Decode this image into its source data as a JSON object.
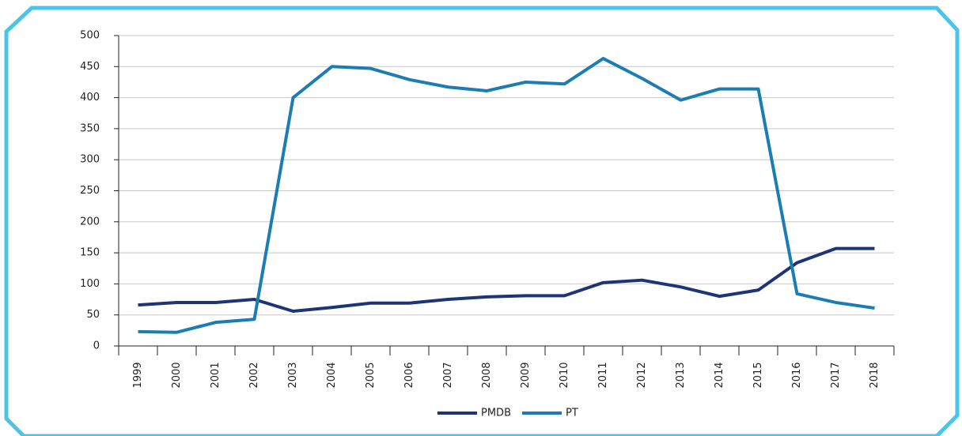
{
  "chart_data": {
    "type": "line",
    "categories": [
      "1999",
      "2000",
      "2001",
      "2002",
      "2003",
      "2004",
      "2005",
      "2006",
      "2007",
      "2008",
      "2009",
      "2010",
      "2011",
      "2012",
      "2013",
      "2014",
      "2015",
      "2016",
      "2017",
      "2018"
    ],
    "series": [
      {
        "name": "PMDB",
        "color": "#1d3577",
        "values": [
          66,
          70,
          70,
          75,
          56,
          62,
          69,
          69,
          75,
          79,
          81,
          81,
          102,
          106,
          95,
          80,
          90,
          134,
          157,
          157
        ]
      },
      {
        "name": "PT",
        "color": "#1b7db4",
        "values": [
          23,
          22,
          38,
          43,
          400,
          450,
          447,
          429,
          417,
          411,
          425,
          422,
          463,
          431,
          396,
          414,
          414,
          84,
          70,
          61
        ]
      }
    ],
    "ylim": [
      0,
      500
    ],
    "yticks": [
      0,
      50,
      100,
      150,
      200,
      250,
      300,
      350,
      400,
      450,
      500
    ],
    "grid": true,
    "legend": "bottom"
  }
}
